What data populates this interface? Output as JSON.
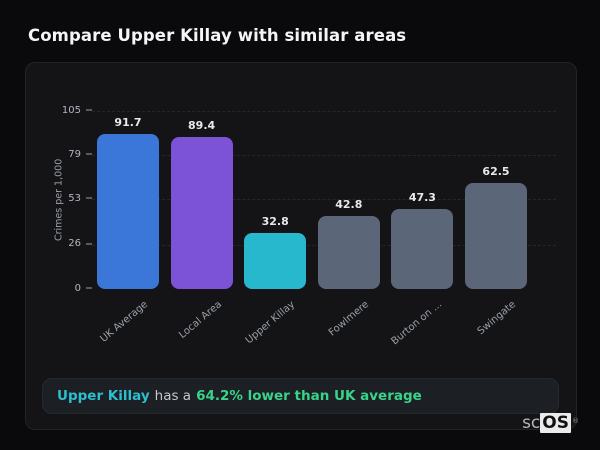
{
  "page_title": "Compare Upper Killay with similar areas",
  "chart_data": {
    "type": "bar",
    "categories": [
      "UK Average",
      "Local Area",
      "Upper Killay",
      "Fowlmere",
      "Burton on ...",
      "Swingate"
    ],
    "values": [
      91.7,
      89.4,
      32.8,
      42.8,
      47.3,
      62.5
    ],
    "value_labels": [
      "91.7",
      "89.4",
      "32.8",
      "42.8",
      "47.3",
      "62.5"
    ],
    "bar_colors": [
      "#3b76d9",
      "#7c52d6",
      "#27b8cd",
      "#5b6779",
      "#5b6779",
      "#5b6779"
    ],
    "title": "",
    "xlabel": "",
    "ylabel": "Crimes per 1,000",
    "yticks": [
      0,
      26,
      53,
      79,
      105
    ],
    "ylim": [
      0,
      105
    ],
    "grid": "horizontal-dashed",
    "legend": "none"
  },
  "insight": {
    "area_name": "Upper Killay",
    "connector": "has a",
    "statement": "64.2% lower than UK average",
    "area_color": "#2bbfcf",
    "statement_color": "#38d38a"
  },
  "logo": {
    "prefix": "sc",
    "suffix": "OS",
    "registered": "®"
  }
}
